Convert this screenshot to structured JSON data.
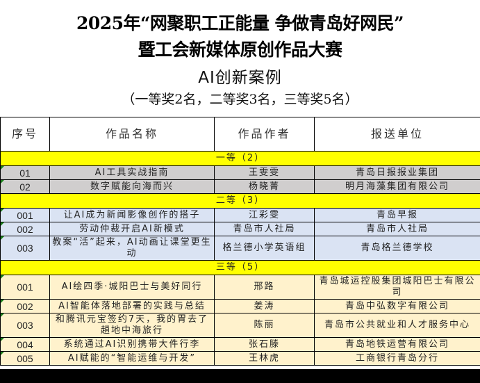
{
  "title": {
    "line1": "2025年“网聚职工正能量 争做青岛好网民”",
    "line2": "暨工会新媒体原创作品大赛",
    "category": "AI创新案例",
    "summary": "（一等奖2名，二等奖3名，三等奖5名）"
  },
  "table": {
    "headers": [
      "序号",
      "作品名称",
      "作品作者",
      "报送单位"
    ],
    "groups": [
      {
        "label": "一等（2）",
        "color": "#d0cece",
        "rows": [
          {
            "no": "01",
            "title": "AI工具实战指南",
            "author": "王雯雯",
            "unit": "青岛日报报业集团"
          },
          {
            "no": "02",
            "title": "数字赋能向海而兴",
            "author": "杨晓菁",
            "unit": "明月海藻集团有限公司"
          }
        ]
      },
      {
        "label": "二等（3）",
        "color": "#dae3f3",
        "rows": [
          {
            "no": "001",
            "title": "让AI成为新闻影像创作的搭子",
            "author": "江彩雯",
            "unit": "青岛早报"
          },
          {
            "no": "002",
            "title": "劳动仲裁开启AI新模式",
            "author": "青岛市人社局",
            "unit": "青岛市人社局"
          },
          {
            "no": "003",
            "title": "教案“活”起来，AI动画让课堂更生动",
            "author": "格兰德小学英语组",
            "unit": "青岛格兰德学校"
          }
        ]
      },
      {
        "label": "三等（5）",
        "color": "#fff2cc",
        "rows": [
          {
            "no": "001",
            "title": "AI绘四季·城阳巴士与美好同行",
            "author": "邢路",
            "unit": "青岛城运控股集团城阳巴士有限公司"
          },
          {
            "no": "002",
            "title": "AI智能体落地部署的实践与总结",
            "author": "姜涛",
            "unit": "青岛中弘数字有限公司"
          },
          {
            "no": "003",
            "title": "和腾讯元宝签约7天，我的胃去了趟地中海旅行",
            "author": "陈丽",
            "unit": "青岛市公共就业和人才服务中心"
          },
          {
            "no": "004",
            "title": "系统通过AI识别携带大件行李",
            "author": "张石滕",
            "unit": "青岛地铁运营有限公司"
          },
          {
            "no": "005",
            "title": "AI赋能的“智能运维与开发”",
            "author": "王林虎",
            "unit": "工商银行青岛分行"
          }
        ]
      }
    ],
    "band_color": "#ffff00"
  }
}
